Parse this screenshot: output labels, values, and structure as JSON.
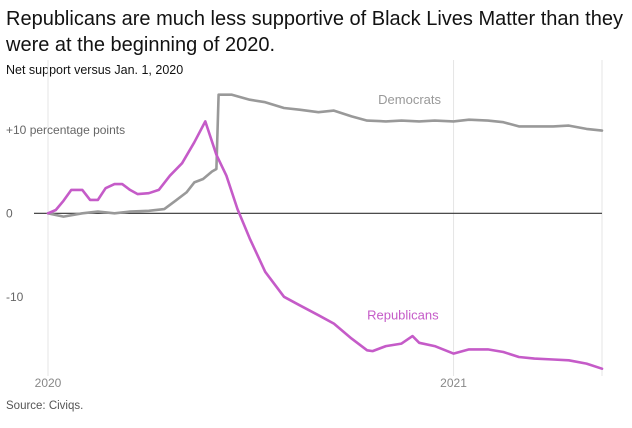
{
  "title": "Republicans are much less supportive of Black Lives Matter than they were at the beginning of 2020.",
  "subtitle": "Net support versus Jan. 1, 2020",
  "source": "Source: Civiqs.",
  "colors": {
    "democrats": "#999999",
    "republicans": "#c55bc8",
    "zero_line": "#333333",
    "grid": "#e6e6e6"
  },
  "chart_data": {
    "type": "line",
    "title": "Republicans are much less supportive of Black Lives Matter than they were at the beginning of 2020.",
    "ylabel": "Net support versus Jan. 1, 2020",
    "xlabel": "",
    "x_ticks": [
      {
        "date": "2020-01-01",
        "label": "2020"
      },
      {
        "date": "2021-01-01",
        "label": "2021"
      }
    ],
    "y_ticks": [
      {
        "value": 10,
        "label": "+10 percentage points"
      },
      {
        "value": 0,
        "label": "0"
      },
      {
        "value": -10,
        "label": "-10"
      }
    ],
    "ylim": [
      -19,
      15
    ],
    "xlim": [
      "2020-01-01",
      "2021-05-15"
    ],
    "grid": "vertical",
    "series": [
      {
        "name": "Democrats",
        "color": "#999999",
        "points": [
          [
            "2020-01-01",
            0
          ],
          [
            "2020-01-15",
            -0.4
          ],
          [
            "2020-02-01",
            0
          ],
          [
            "2020-02-15",
            0.2
          ],
          [
            "2020-03-01",
            0
          ],
          [
            "2020-03-15",
            0.2
          ],
          [
            "2020-04-01",
            0.3
          ],
          [
            "2020-04-15",
            0.5
          ],
          [
            "2020-04-25",
            1.5
          ],
          [
            "2020-05-05",
            2.5
          ],
          [
            "2020-05-12",
            3.7
          ],
          [
            "2020-05-20",
            4.1
          ],
          [
            "2020-05-28",
            5.0
          ],
          [
            "2020-06-01",
            5.3
          ],
          [
            "2020-06-03",
            14.2
          ],
          [
            "2020-06-15",
            14.2
          ],
          [
            "2020-07-01",
            13.6
          ],
          [
            "2020-07-15",
            13.3
          ],
          [
            "2020-08-01",
            12.6
          ],
          [
            "2020-08-15",
            12.4
          ],
          [
            "2020-09-01",
            12.1
          ],
          [
            "2020-09-15",
            12.3
          ],
          [
            "2020-10-01",
            11.6
          ],
          [
            "2020-10-15",
            11.1
          ],
          [
            "2020-11-01",
            11.0
          ],
          [
            "2020-11-15",
            11.1
          ],
          [
            "2020-12-01",
            11.0
          ],
          [
            "2020-12-15",
            11.1
          ],
          [
            "2021-01-01",
            11.0
          ],
          [
            "2021-01-15",
            11.2
          ],
          [
            "2021-02-01",
            11.1
          ],
          [
            "2021-02-15",
            10.9
          ],
          [
            "2021-03-01",
            10.4
          ],
          [
            "2021-03-15",
            10.4
          ],
          [
            "2021-04-01",
            10.4
          ],
          [
            "2021-04-15",
            10.5
          ],
          [
            "2021-05-01",
            10.1
          ],
          [
            "2021-05-15",
            9.9
          ]
        ]
      },
      {
        "name": "Republicans",
        "color": "#c55bc8",
        "points": [
          [
            "2020-01-01",
            0
          ],
          [
            "2020-01-08",
            0.4
          ],
          [
            "2020-01-15",
            1.5
          ],
          [
            "2020-01-22",
            2.8
          ],
          [
            "2020-02-01",
            2.8
          ],
          [
            "2020-02-08",
            1.6
          ],
          [
            "2020-02-15",
            1.6
          ],
          [
            "2020-02-22",
            3.0
          ],
          [
            "2020-03-01",
            3.5
          ],
          [
            "2020-03-08",
            3.5
          ],
          [
            "2020-03-15",
            2.8
          ],
          [
            "2020-03-22",
            2.3
          ],
          [
            "2020-04-01",
            2.4
          ],
          [
            "2020-04-10",
            2.8
          ],
          [
            "2020-04-20",
            4.5
          ],
          [
            "2020-05-01",
            6.0
          ],
          [
            "2020-05-12",
            8.5
          ],
          [
            "2020-05-22",
            11.0
          ],
          [
            "2020-06-01",
            7.0
          ],
          [
            "2020-06-10",
            4.5
          ],
          [
            "2020-06-20",
            0.5
          ],
          [
            "2020-07-01",
            -3.0
          ],
          [
            "2020-07-15",
            -7.0
          ],
          [
            "2020-08-01",
            -10.0
          ],
          [
            "2020-08-15",
            -11.0
          ],
          [
            "2020-09-01",
            -12.2
          ],
          [
            "2020-09-15",
            -13.2
          ],
          [
            "2020-10-01",
            -15.0
          ],
          [
            "2020-10-15",
            -16.4
          ],
          [
            "2020-10-20",
            -16.5
          ],
          [
            "2020-11-01",
            -15.9
          ],
          [
            "2020-11-15",
            -15.6
          ],
          [
            "2020-11-25",
            -14.7
          ],
          [
            "2020-12-01",
            -15.5
          ],
          [
            "2020-12-15",
            -15.9
          ],
          [
            "2021-01-01",
            -16.8
          ],
          [
            "2021-01-15",
            -16.3
          ],
          [
            "2021-02-01",
            -16.3
          ],
          [
            "2021-02-15",
            -16.6
          ],
          [
            "2021-03-01",
            -17.2
          ],
          [
            "2021-03-15",
            -17.4
          ],
          [
            "2021-04-01",
            -17.5
          ],
          [
            "2021-04-15",
            -17.6
          ],
          [
            "2021-05-01",
            -18.0
          ],
          [
            "2021-05-15",
            -18.6
          ]
        ]
      }
    ]
  }
}
